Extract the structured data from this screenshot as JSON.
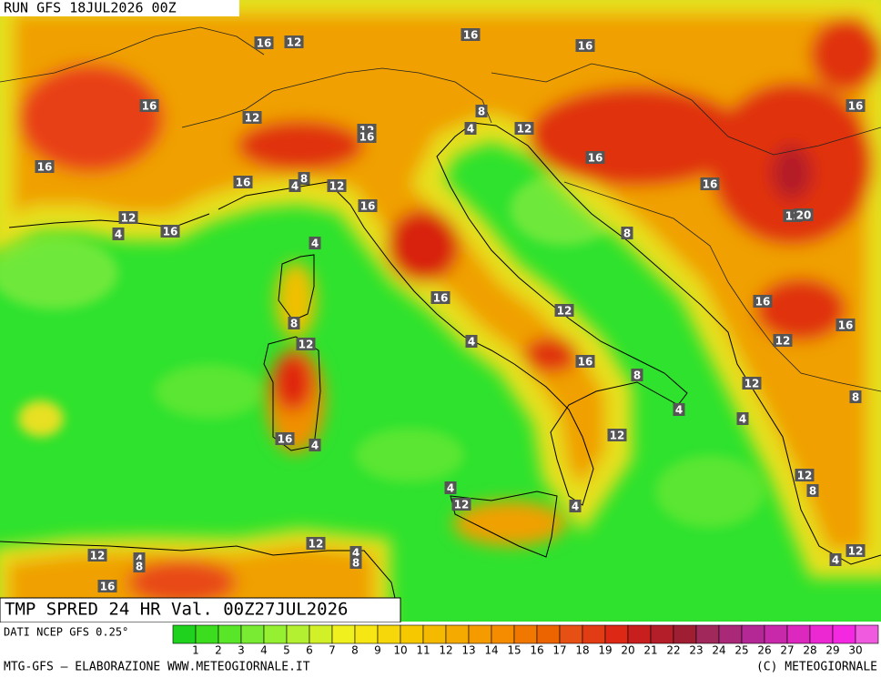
{
  "header": {
    "run": "RUN GFS 18JUL2026 00Z"
  },
  "title": "TMP SPRED 24 HR Val. 00Z27JUL2026",
  "source": "DATI NCEP GFS 0.25°",
  "footer": {
    "left": "MTG-GFS – ELABORAZIONE WWW.METEOGIORNALE.IT",
    "right": "(C) METEOGIORNALE"
  },
  "colorbar": {
    "labels": [
      1,
      2,
      3,
      4,
      5,
      6,
      7,
      8,
      9,
      10,
      11,
      12,
      13,
      14,
      15,
      16,
      17,
      18,
      19,
      20,
      21,
      22,
      23,
      24,
      25,
      26,
      27,
      28,
      29,
      30
    ],
    "colors": [
      "#1ed21e",
      "#3cdc1e",
      "#5ae628",
      "#78eb32",
      "#96f032",
      "#b4f032",
      "#d2f028",
      "#f0f01e",
      "#f5e614",
      "#f5d70a",
      "#f5c800",
      "#f5b900",
      "#f5aa00",
      "#f59b00",
      "#f58c00",
      "#f07800",
      "#eb6400",
      "#e65014",
      "#e13c14",
      "#dc2814",
      "#c81e1e",
      "#b41e28",
      "#a01e32",
      "#a0285a",
      "#aa2878",
      "#b42896",
      "#c828aa",
      "#dc28be",
      "#eb28d2",
      "#f528e1",
      "#f05ade"
    ]
  },
  "contour_labels": [
    16,
    12,
    16,
    16,
    16,
    12,
    12,
    16,
    16,
    16,
    8,
    4,
    12,
    16,
    4,
    12,
    16,
    8,
    4,
    12,
    16,
    16,
    16,
    12,
    20,
    8,
    4,
    16,
    12,
    16,
    16,
    12,
    8,
    12,
    4,
    16,
    8,
    12,
    8,
    4,
    4,
    16,
    4,
    12,
    12,
    8,
    4,
    12,
    4,
    12,
    4,
    8,
    12,
    4,
    8,
    16,
    4,
    12
  ]
}
